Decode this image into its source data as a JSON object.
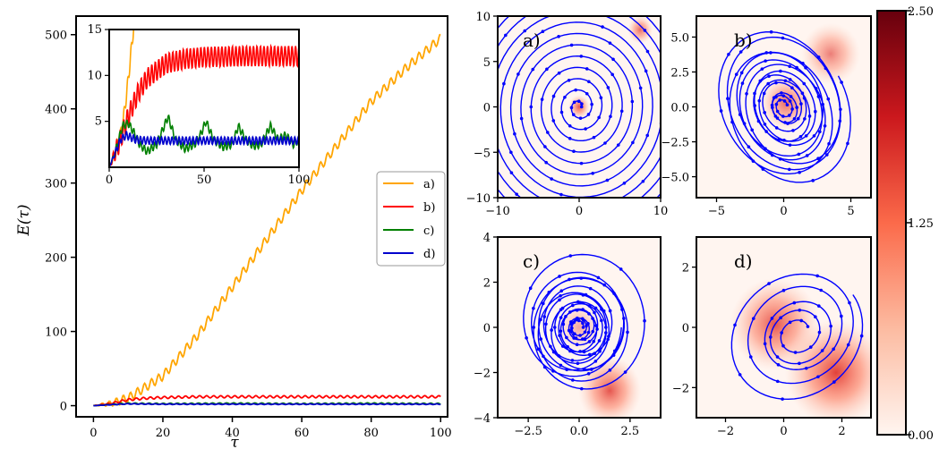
{
  "chart_data": [
    {
      "type": "line",
      "xlabel": "τ",
      "ylabel": "E(τ)",
      "xlim": [
        -5,
        102
      ],
      "ylim": [
        -15,
        525
      ],
      "xticks": [
        0,
        20,
        40,
        60,
        80,
        100
      ],
      "yticks": [
        0,
        100,
        200,
        300,
        400,
        500
      ],
      "legend": "center-right",
      "series": [
        {
          "name": "a)",
          "color": "#FFA500",
          "x": [
            0,
            5,
            10,
            20,
            30,
            40,
            50,
            60,
            70,
            80,
            90,
            100
          ],
          "values": [
            0,
            3,
            10,
            40,
            95,
            160,
            225,
            290,
            350,
            410,
            455,
            495
          ],
          "osc_amp": 6
        },
        {
          "name": "b)",
          "color": "#FF0000",
          "x": [
            0,
            5,
            10,
            15,
            20,
            30,
            40,
            60,
            80,
            100
          ],
          "values": [
            0,
            3,
            8,
            10,
            11,
            12,
            12,
            12,
            12,
            12
          ],
          "osc_amp": 1.5
        },
        {
          "name": "c)",
          "color": "#008000",
          "x": [
            0,
            10,
            20,
            40,
            60,
            80,
            100
          ],
          "values": [
            0,
            3,
            2.5,
            3,
            2.5,
            3,
            2.5
          ],
          "osc_amp": 0.8
        },
        {
          "name": "d)",
          "color": "#0000CD",
          "x": [
            0,
            10,
            20,
            40,
            60,
            80,
            100
          ],
          "values": [
            0,
            2.5,
            2,
            2,
            2,
            2,
            2
          ],
          "osc_amp": 0.5
        }
      ],
      "inset": {
        "xlim": [
          0,
          100
        ],
        "ylim": [
          0,
          15
        ],
        "xticks": [
          0,
          50,
          100
        ],
        "yticks": [
          5,
          10,
          15
        ],
        "series": [
          {
            "name": "a)",
            "color": "#FFA500",
            "x": [
              0,
              3,
              6,
              8,
              10,
              12,
              13
            ],
            "values": [
              0,
              1.5,
              3.5,
              6,
              9.5,
              13.5,
              15.5
            ],
            "osc_amp": 0.7
          },
          {
            "name": "b)",
            "color": "#FF0000",
            "x": [
              0,
              5,
              10,
              15,
              20,
              30,
              40,
              50,
              60,
              70,
              80,
              100
            ],
            "values": [
              0,
              2.5,
              5.5,
              8,
              9.7,
              11.3,
              11.8,
              12,
              12.05,
              12.1,
              12.1,
              12.1
            ],
            "osc_amp": 1.1
          },
          {
            "name": "c)",
            "color": "#008000",
            "x": [
              0,
              3,
              5,
              7,
              10,
              13,
              16,
              20,
              25,
              28,
              31,
              35,
              40,
              45,
              48,
              51,
              55,
              60,
              65,
              68,
              72,
              76,
              80,
              85,
              89,
              93,
              97,
              100
            ],
            "values": [
              0,
              1.5,
              3,
              4.5,
              4.8,
              3.8,
              2.5,
              1.7,
              2.5,
              4,
              5.5,
              3,
              2,
              2.5,
              3.5,
              5,
              3,
              2.2,
              2.5,
              4.5,
              3,
              2.3,
              2.5,
              4.5,
              3,
              3.5,
              2.5,
              3
            ],
            "osc_amp": 0.4
          },
          {
            "name": "d)",
            "color": "#0000CD",
            "x": [
              0,
              3,
              6,
              9,
              14,
              20,
              40,
              60,
              80,
              100
            ],
            "values": [
              0,
              1.5,
              3,
              3.5,
              3,
              2.9,
              2.9,
              2.9,
              2.9,
              2.9
            ],
            "osc_amp": 0.4
          }
        ]
      }
    },
    {
      "type": "heatmap",
      "panel": "a)",
      "xlim": [
        -10,
        10
      ],
      "ylim": [
        -10,
        10
      ],
      "xticks": [
        -10,
        0,
        10
      ],
      "yticks": [
        -10,
        -5,
        0,
        5,
        10
      ],
      "trajectory": {
        "kind": "spiral",
        "cx": 0,
        "cy": 0,
        "ax": 1.0,
        "ay": 1.0,
        "r0": 0.3,
        "r1": 14,
        "turns": 11,
        "rot": 0,
        "jitter": 0,
        "color": "#0000FF"
      },
      "density_peaks": [
        {
          "x": 0,
          "y": 0,
          "s": 0.6,
          "w": 0.8
        },
        {
          "x": 7.5,
          "y": 8.5,
          "s": 0.7,
          "w": 0.7
        }
      ]
    },
    {
      "type": "heatmap",
      "panel": "b)",
      "xlim": [
        -6.5,
        6.5
      ],
      "ylim": [
        -6.5,
        6.5
      ],
      "xticks": [
        -5,
        0,
        5
      ],
      "yticks": [
        -5.0,
        -2.5,
        0.0,
        2.5,
        5.0
      ],
      "trajectory": {
        "kind": "spiral",
        "cx": 0,
        "cy": 0,
        "ax": 1.0,
        "ay": 1.25,
        "r0": 0.3,
        "r1": 4.5,
        "turns": 13,
        "rot": 0.5,
        "jitter": 0.25,
        "color": "#0000FF"
      },
      "density_peaks": [
        {
          "x": 0.2,
          "y": 0.3,
          "s": 0.9,
          "w": 0.7
        },
        {
          "x": 3.5,
          "y": 3.8,
          "s": 1.0,
          "w": 0.6
        }
      ]
    },
    {
      "type": "heatmap",
      "panel": "c)",
      "xlim": [
        -4,
        4
      ],
      "ylim": [
        -4,
        4
      ],
      "xticks": [
        -2.5,
        0.0,
        2.5
      ],
      "yticks": [
        -4,
        -2,
        0,
        2,
        4
      ],
      "trajectory": {
        "kind": "spiral",
        "cx": 0,
        "cy": 0,
        "ax": 1.0,
        "ay": 1.0,
        "r0": 0.2,
        "r1": 2.6,
        "turns": 15,
        "rot": 0,
        "jitter": 0.35,
        "color": "#0000FF"
      },
      "density_peaks": [
        {
          "x": 0,
          "y": 0,
          "s": 0.5,
          "w": 0.4
        },
        {
          "x": 1.5,
          "y": -2.8,
          "s": 0.7,
          "w": 0.8
        }
      ]
    },
    {
      "type": "heatmap",
      "panel": "d)",
      "xlim": [
        -3,
        3
      ],
      "ylim": [
        -3,
        3
      ],
      "xticks": [
        -2,
        0,
        2
      ],
      "yticks": [
        -2,
        0,
        2
      ],
      "trajectory": {
        "kind": "spiral",
        "cx": 0.5,
        "cy": -0.2,
        "ax": 1.0,
        "ay": 0.85,
        "r0": 0.4,
        "r1": 2.4,
        "turns": 5,
        "rot": 0.6,
        "jitter": 0.12,
        "color": "#0000FF"
      },
      "density_peaks": [
        {
          "x": -0.3,
          "y": 0.1,
          "s": 0.7,
          "w": 0.8
        },
        {
          "x": 1.8,
          "y": -1.5,
          "s": 0.8,
          "w": 0.9
        }
      ]
    },
    {
      "type": "colorbar",
      "ticks": [
        "0.00",
        "1.25",
        "2.50"
      ],
      "range": [
        0,
        2.5
      ]
    }
  ]
}
